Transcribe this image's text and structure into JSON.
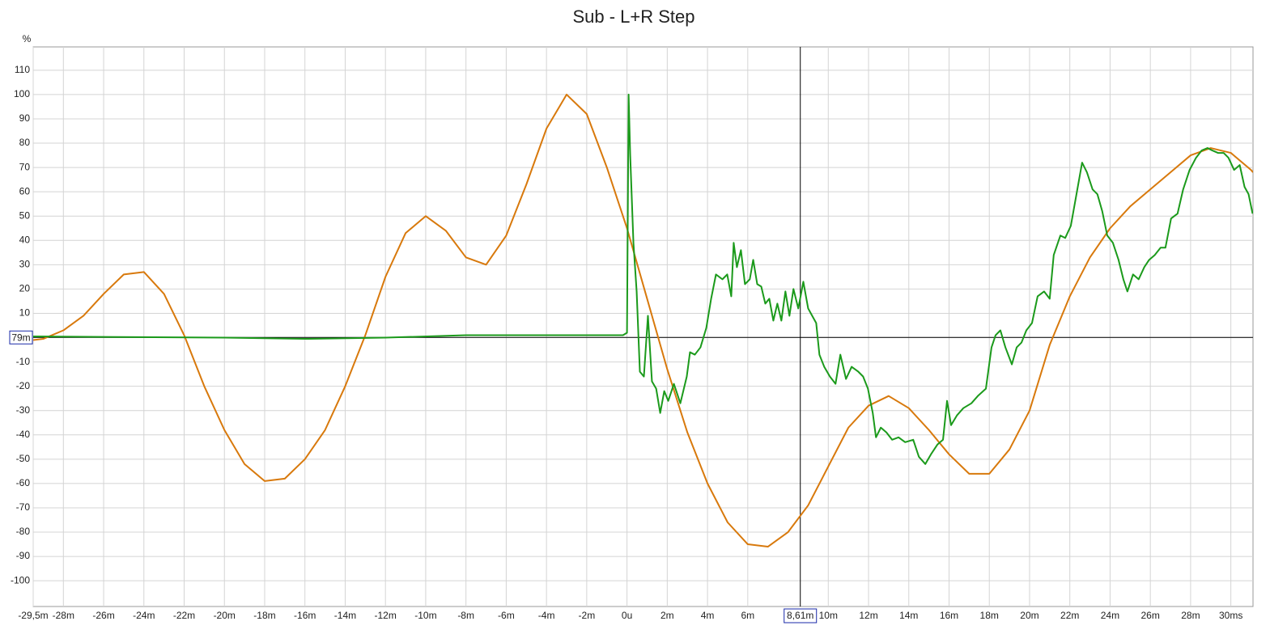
{
  "chart_data": {
    "type": "line",
    "title": "Sub - L+R Step",
    "y_unit": "%",
    "xlim": [
      -29.5,
      31.1
    ],
    "ylim": [
      -110.6,
      119.6
    ],
    "xticks": [
      {
        "value": -29.5,
        "label": "-29,5m"
      },
      {
        "value": -28,
        "label": "-28m"
      },
      {
        "value": -26,
        "label": "-26m"
      },
      {
        "value": -24,
        "label": "-24m"
      },
      {
        "value": -22,
        "label": "-22m"
      },
      {
        "value": -20,
        "label": "-20m"
      },
      {
        "value": -18,
        "label": "-18m"
      },
      {
        "value": -16,
        "label": "-16m"
      },
      {
        "value": -14,
        "label": "-14m"
      },
      {
        "value": -12,
        "label": "-12m"
      },
      {
        "value": -10,
        "label": "-10m"
      },
      {
        "value": -8,
        "label": "-8m"
      },
      {
        "value": -6,
        "label": "-6m"
      },
      {
        "value": -4,
        "label": "-4m"
      },
      {
        "value": -2,
        "label": "-2m"
      },
      {
        "value": 0,
        "label": "0u"
      },
      {
        "value": 2,
        "label": "2m"
      },
      {
        "value": 4,
        "label": "4m"
      },
      {
        "value": 6,
        "label": "6m"
      },
      {
        "value": 10,
        "label": "10m"
      },
      {
        "value": 12,
        "label": "12m"
      },
      {
        "value": 14,
        "label": "14m"
      },
      {
        "value": 16,
        "label": "16m"
      },
      {
        "value": 18,
        "label": "18m"
      },
      {
        "value": 20,
        "label": "20m"
      },
      {
        "value": 22,
        "label": "22m"
      },
      {
        "value": 24,
        "label": "24m"
      },
      {
        "value": 26,
        "label": "26m"
      },
      {
        "value": 28,
        "label": "28m"
      },
      {
        "value": 30,
        "label": "30ms"
      }
    ],
    "yticks": [
      -100,
      -90,
      -80,
      -70,
      -60,
      -50,
      -40,
      -30,
      -20,
      -10,
      0,
      10,
      20,
      30,
      40,
      50,
      60,
      70,
      80,
      90,
      100,
      110
    ],
    "grid": true,
    "cursor": {
      "x": 8.61,
      "x_label": "8,61m",
      "y": 0.079,
      "y_label": "79m"
    },
    "series": [
      {
        "color": "#d8790c",
        "x": [
          -29.5,
          -29,
          -28,
          -27,
          -26,
          -25,
          -24,
          -23,
          -22,
          -21,
          -20,
          -19,
          -18,
          -17,
          -16,
          -15,
          -14,
          -13,
          -12,
          -11,
          -10,
          -9,
          -8,
          -7,
          -6,
          -5,
          -4,
          -3,
          -2,
          -1,
          0,
          1,
          2,
          3,
          4,
          5,
          6,
          7,
          8,
          9,
          10,
          11,
          12,
          13,
          14,
          15,
          16,
          17,
          18,
          19,
          20,
          21,
          22,
          23,
          24,
          25,
          26,
          27,
          28,
          29,
          30,
          31,
          31.1
        ],
        "values": [
          -1,
          -0.5,
          3,
          9,
          18,
          26,
          27,
          18,
          1,
          -20,
          -38,
          -52,
          -59,
          -58,
          -50,
          -38,
          -20,
          1,
          25,
          43,
          50,
          44,
          33,
          30,
          42,
          63,
          86,
          100,
          92,
          70,
          45,
          16,
          -13,
          -39,
          -60,
          -76,
          -85,
          -86,
          -80,
          -69,
          -53,
          -37,
          -28,
          -24,
          -29,
          -38,
          -48,
          -56,
          -56,
          -46,
          -30,
          -3,
          17,
          33,
          45,
          54,
          61,
          68,
          75,
          78,
          76,
          69,
          68
        ]
      },
      {
        "color": "#1b9a1b",
        "x": [
          -29.5,
          -20,
          -16,
          -12,
          -8,
          -2,
          -0.2,
          0,
          0.08,
          0.16,
          0.32,
          0.48,
          0.64,
          0.84,
          1.04,
          1.24,
          1.45,
          1.65,
          1.85,
          2.05,
          2.33,
          2.65,
          2.97,
          3.13,
          3.37,
          3.65,
          3.94,
          4.18,
          4.42,
          4.74,
          4.98,
          5.18,
          5.3,
          5.46,
          5.66,
          5.86,
          6.1,
          6.27,
          6.47,
          6.67,
          6.87,
          7.07,
          7.27,
          7.47,
          7.67,
          7.87,
          8.07,
          8.27,
          8.51,
          8.76,
          9,
          9.2,
          9.4,
          9.56,
          9.8,
          10.08,
          10.36,
          10.6,
          10.88,
          11.16,
          11.49,
          11.73,
          11.97,
          12.21,
          12.37,
          12.61,
          12.89,
          13.17,
          13.49,
          13.82,
          14.22,
          14.5,
          14.82,
          15.1,
          15.42,
          15.7,
          15.9,
          16.1,
          16.39,
          16.71,
          17.11,
          17.43,
          17.83,
          18.11,
          18.31,
          18.55,
          18.8,
          19.12,
          19.36,
          19.6,
          19.84,
          20.12,
          20.4,
          20.72,
          21,
          21.2,
          21.53,
          21.77,
          22.05,
          22.33,
          22.61,
          22.85,
          23.13,
          23.37,
          23.61,
          23.86,
          24.14,
          24.42,
          24.66,
          24.86,
          25.14,
          25.42,
          25.7,
          25.94,
          26.22,
          26.51,
          26.75,
          27.03,
          27.35,
          27.63,
          27.95,
          28.27,
          28.55,
          28.84,
          29.08,
          29.36,
          29.64,
          29.88,
          30.16,
          30.44,
          30.68,
          30.88,
          31.08
        ],
        "values": [
          0.5,
          0,
          -0.5,
          0,
          1,
          1,
          1,
          2,
          100,
          75,
          39,
          19,
          -14,
          -16,
          9,
          -18,
          -21,
          -31,
          -22,
          -26,
          -19,
          -27,
          -16,
          -6,
          -7,
          -4,
          4,
          16,
          26,
          24,
          26,
          17,
          39,
          29,
          36,
          22,
          24,
          32,
          22,
          21,
          14,
          16,
          7,
          14,
          7,
          19,
          9,
          20,
          12,
          23,
          12,
          9,
          6,
          -7,
          -12,
          -16,
          -19,
          -7,
          -17,
          -12,
          -14,
          -16,
          -21,
          -31,
          -41,
          -37,
          -39,
          -42,
          -41,
          -43,
          -42,
          -49,
          -52,
          -48,
          -44,
          -42,
          -26,
          -36,
          -32,
          -29,
          -27,
          -24,
          -21,
          -4,
          1,
          3,
          -4,
          -11,
          -4,
          -2,
          3,
          6,
          17,
          19,
          16,
          34,
          42,
          41,
          46,
          59,
          72,
          68,
          61,
          59,
          52,
          42,
          39,
          32,
          24,
          19,
          26,
          24,
          29,
          32,
          34,
          37,
          37,
          49,
          51,
          61,
          69,
          74,
          77,
          78,
          77,
          76,
          76,
          74,
          69,
          71,
          62,
          59,
          51
        ]
      }
    ]
  }
}
